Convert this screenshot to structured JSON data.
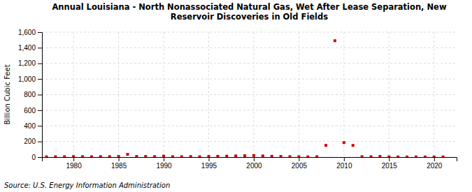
{
  "chart_data": {
    "type": "scatter",
    "title": "Annual Louisiana - North Nonassociated Natural Gas, Wet After Lease Separation, New\nReservoir Discoveries in Old Fields",
    "ylabel": "Billion Cubic Feet",
    "source": "Source: U.S. Energy Information Administration",
    "color": "#cc0000",
    "marker": "square",
    "grid": true,
    "xlim": [
      1976.5,
      2022.5
    ],
    "ylim": [
      0,
      1600
    ],
    "xticks": [
      1980,
      1985,
      1990,
      1995,
      2000,
      2005,
      2010,
      2015,
      2020
    ],
    "yticks": [
      0,
      200,
      400,
      600,
      800,
      {
        "value": 1000,
        "label": "1,000"
      },
      {
        "value": 1200,
        "label": "1,200"
      },
      {
        "value": 1400,
        "label": "1,400"
      },
      {
        "value": 1600,
        "label": "1,600"
      }
    ],
    "x": [
      1977,
      1978,
      1979,
      1980,
      1981,
      1982,
      1983,
      1984,
      1985,
      1986,
      1987,
      1988,
      1989,
      1990,
      1991,
      1992,
      1993,
      1994,
      1995,
      1996,
      1997,
      1998,
      1999,
      2000,
      2001,
      2002,
      2003,
      2004,
      2005,
      2006,
      2007,
      2008,
      2009,
      2010,
      2011,
      2012,
      2013,
      2014,
      2015,
      2016,
      2017,
      2018,
      2019,
      2020,
      2021
    ],
    "values": [
      3,
      4,
      5,
      6,
      5,
      4,
      6,
      6,
      8,
      35,
      8,
      8,
      6,
      12,
      5,
      4,
      6,
      4,
      8,
      10,
      12,
      15,
      18,
      20,
      15,
      10,
      8,
      5,
      4,
      3,
      5,
      150,
      1490,
      185,
      150,
      5,
      4,
      8,
      3,
      2,
      2,
      2,
      2,
      2,
      2
    ]
  }
}
